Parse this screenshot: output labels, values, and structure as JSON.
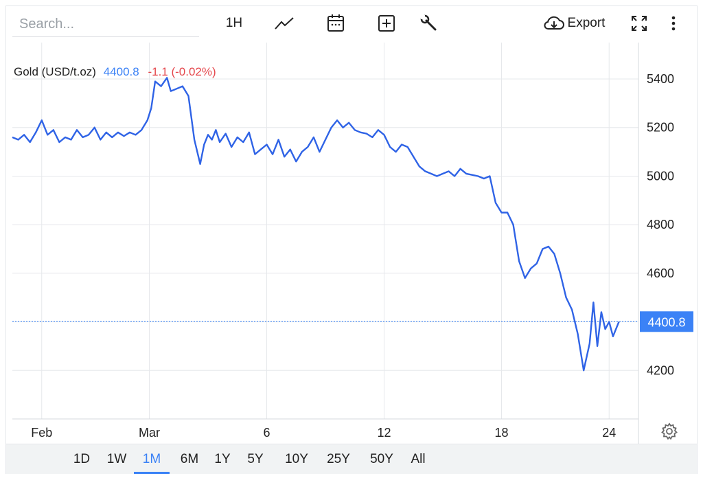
{
  "toolbar": {
    "search_placeholder": "Search...",
    "interval_label": "1H",
    "export_label": "Export",
    "icons": [
      "line-chart-icon",
      "calendar-icon",
      "plus-box-icon",
      "wrench-icon",
      "cloud-download-icon",
      "fullscreen-icon",
      "more-vertical-icon"
    ]
  },
  "legend": {
    "instrument": "Gold (USD/t.oz)",
    "price": "4400.8",
    "change": "-1.1 (-0.02%)"
  },
  "colors": {
    "line": "#2f63e6",
    "accent": "#3b82f6",
    "negative": "#e5484d",
    "grid": "#e6e8eb"
  },
  "range_buttons": [
    "1D",
    "1W",
    "1M",
    "6M",
    "1Y",
    "5Y",
    "10Y",
    "25Y",
    "50Y",
    "All"
  ],
  "active_range": "1M",
  "chart_data": {
    "type": "line",
    "xlabels": [
      "Feb",
      "Mar",
      "6",
      "12",
      "18",
      "24"
    ],
    "xlabel_positions": [
      1.5,
      7.0,
      13.0,
      19.0,
      25.0,
      30.5
    ],
    "x_range": [
      0,
      32
    ],
    "yticks": [
      4200,
      4400,
      4600,
      4800,
      5000,
      5200,
      5400
    ],
    "ylim": [
      4000,
      5550
    ],
    "last_value": 4400.8,
    "last_label": "4400.8",
    "grid": true,
    "series": [
      {
        "x": [
          0,
          0.3,
          0.6,
          0.9,
          1.2,
          1.5,
          1.8,
          2.1,
          2.4,
          2.7,
          3.0,
          3.3,
          3.6,
          3.9,
          4.2,
          4.5,
          4.8,
          5.1,
          5.4,
          5.7,
          6.0,
          6.3,
          6.6,
          6.9,
          7.1,
          7.3,
          7.6,
          7.9,
          8.1,
          8.4,
          8.7,
          9.0,
          9.3,
          9.6,
          9.8,
          10.0,
          10.2,
          10.4,
          10.6,
          10.9,
          11.2,
          11.5,
          11.8,
          12.1,
          12.4,
          12.7,
          13.0,
          13.3,
          13.6,
          13.9,
          14.2,
          14.5,
          14.8,
          15.1,
          15.4,
          15.7,
          16.0,
          16.3,
          16.6,
          16.9,
          17.2,
          17.5,
          17.8,
          18.1,
          18.4,
          18.7,
          19.0,
          19.3,
          19.6,
          19.9,
          20.2,
          20.5,
          20.8,
          21.1,
          21.4,
          21.7,
          22.0,
          22.3,
          22.6,
          22.9,
          23.2,
          23.5,
          23.8,
          24.1,
          24.4,
          24.7,
          25.0,
          25.3,
          25.6,
          25.9,
          26.2,
          26.5,
          26.8,
          27.1,
          27.4,
          27.7,
          28.0,
          28.3,
          28.6,
          28.9,
          29.2,
          29.5,
          29.7,
          29.9,
          30.1,
          30.3,
          30.5,
          30.7,
          31.0
        ],
        "y": [
          5160,
          5150,
          5170,
          5140,
          5180,
          5230,
          5170,
          5190,
          5140,
          5160,
          5150,
          5190,
          5160,
          5170,
          5200,
          5150,
          5180,
          5160,
          5180,
          5165,
          5180,
          5170,
          5190,
          5230,
          5280,
          5390,
          5370,
          5405,
          5350,
          5360,
          5370,
          5330,
          5150,
          5050,
          5130,
          5170,
          5150,
          5190,
          5140,
          5175,
          5120,
          5160,
          5140,
          5180,
          5090,
          5110,
          5130,
          5090,
          5150,
          5080,
          5110,
          5060,
          5100,
          5120,
          5160,
          5100,
          5150,
          5200,
          5230,
          5200,
          5220,
          5190,
          5180,
          5175,
          5160,
          5190,
          5170,
          5120,
          5100,
          5130,
          5120,
          5080,
          5040,
          5020,
          5010,
          5000,
          5010,
          5020,
          5000,
          5030,
          5010,
          5005,
          5000,
          4990,
          5000,
          4890,
          4850,
          4850,
          4800,
          4650,
          4580,
          4620,
          4640,
          4700,
          4710,
          4680,
          4600,
          4500,
          4450,
          4350,
          4200,
          4310,
          4480,
          4300,
          4440,
          4370,
          4400,
          4340,
          4400
        ]
      }
    ]
  }
}
